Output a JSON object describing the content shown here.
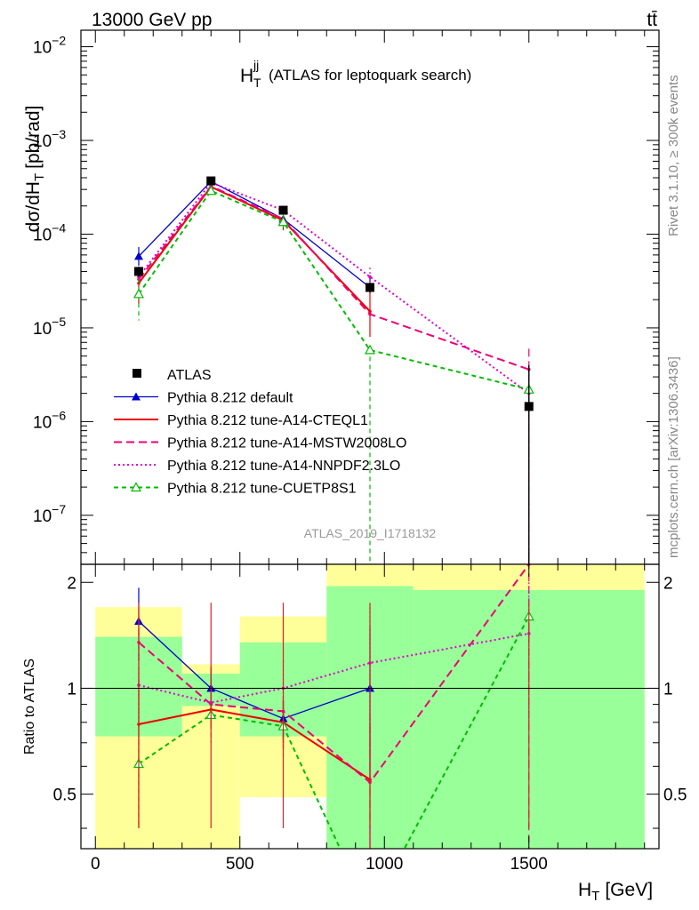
{
  "header": {
    "beam": "13000 GeV pp",
    "process": "tt̄"
  },
  "plot_title": {
    "main": "H",
    "sup": "jj",
    "sub": "T",
    "rest": "(ATLAS for leptoquark search)"
  },
  "ylabel": {
    "prefix": "dσ/dH",
    "sub": "T",
    "suffix": "[pb/rad]"
  },
  "xlabel": {
    "main": "H",
    "sub": "T",
    "unit": "[GeV]"
  },
  "ratio_label": "Ratio to ATLAS",
  "analysis_id": "ATLAS_2019_I1718132",
  "side_labels": {
    "rivet": "Rivet 3.1.10, ≥ 300k events",
    "mcplots": "mcplots.cern.ch [arXiv:1306.3436]"
  },
  "colors": {
    "data": "#000000",
    "default": "#0000cc",
    "a14_cteq": "#ee0000",
    "a14_mstw": "#ee0077",
    "a14_nnpdf": "#dd00cc",
    "cuetp8s1": "#00bb00",
    "band_inner": "#99ff99",
    "band_outer": "#ffff99"
  },
  "chart_data": {
    "type": "line",
    "x_bins": [
      [
        0,
        300
      ],
      [
        300,
        500
      ],
      [
        500,
        800
      ],
      [
        800,
        1100
      ],
      [
        1100,
        1900
      ]
    ],
    "x": [
      150,
      400,
      650,
      950,
      1500
    ],
    "xlim": [
      -50,
      1950
    ],
    "xticks": [
      0,
      500,
      1000,
      1500
    ],
    "main_ylim": [
      3e-08,
      0.015
    ],
    "main_yticks": [
      {
        "value": 1e-07,
        "mant": "10",
        "exp": "−7"
      },
      {
        "value": 1e-06,
        "mant": "10",
        "exp": "−6"
      },
      {
        "value": 1e-05,
        "mant": "10",
        "exp": "−5"
      },
      {
        "value": 0.0001,
        "mant": "10",
        "exp": "−4"
      },
      {
        "value": 0.001,
        "mant": "10",
        "exp": "−3"
      },
      {
        "value": 0.01,
        "mant": "10",
        "exp": "−2"
      }
    ],
    "ratio_ylim": [
      0.35,
      2.25
    ],
    "ratio_yticks": [
      {
        "value": 0.5,
        "label": "0.5"
      },
      {
        "value": 1,
        "label": "1"
      },
      {
        "value": 2,
        "label": "2"
      }
    ],
    "data": {
      "name": "ATLAS",
      "values": [
        4e-05,
        0.00037,
        0.00018,
        2.7e-05,
        1.45e-06
      ]
    },
    "bands": {
      "inner": [
        [
          0.73,
          1.4
        ],
        [
          0.89,
          1.1
        ],
        [
          0.73,
          1.35
        ],
        [
          0.3,
          1.95
        ],
        [
          0.3,
          1.9
        ]
      ],
      "outer": [
        [
          0.3,
          1.7
        ],
        [
          0.35,
          1.17
        ],
        [
          0.49,
          1.6
        ],
        [
          0.3,
          2.3
        ],
        [
          0.3,
          2.3
        ]
      ]
    },
    "series": [
      {
        "name": "Pythia 8.212 default",
        "key": "default",
        "dash": "",
        "marker": "triangle-filled",
        "values": [
          5.8e-05,
          0.000365,
          0.000145,
          2.7e-05,
          null
        ],
        "ratio": [
          1.55,
          1.0,
          0.82,
          1.0,
          null
        ],
        "ratio_err": [
          [
            1.2,
            1.93
          ],
          [
            0.88,
            1.15
          ],
          [
            0.7,
            0.92
          ],
          [
            0.55,
            1.5
          ],
          null
        ],
        "main_err": [
          [
            4.6e-05,
            7.3e-05
          ],
          null,
          null,
          [
            2.3e-05,
            3.5e-05
          ],
          null
        ]
      },
      {
        "name": "Pythia 8.212 tune-A14-CTEQL1",
        "key": "a14_cteq",
        "dash": "",
        "marker": "none",
        "values": [
          3e-05,
          0.00032,
          0.00014,
          1.5e-05,
          null
        ],
        "ratio": [
          0.79,
          0.87,
          0.8,
          0.55,
          null
        ],
        "ratio_err": [
          [
            0.4,
            1.1
          ],
          [
            0.77,
            0.95
          ],
          [
            0.67,
            0.92
          ],
          [
            0.3,
            0.8
          ],
          null
        ],
        "main_err": [
          [
            1.8e-05,
            4e-05
          ],
          null,
          [
            0.00011,
            0.00016
          ],
          [
            8e-06,
            2.6e-05
          ],
          null
        ]
      },
      {
        "name": "Pythia 8.212 tune-A14-MSTW2008LO",
        "key": "a14_mstw",
        "dash": "9,5",
        "marker": "none",
        "values": [
          3.3e-05,
          0.000325,
          0.000145,
          1.4e-05,
          3.6e-06
        ],
        "ratio": [
          1.35,
          0.9,
          0.86,
          0.54,
          2.25
        ],
        "ratio_err": [
          [
            0.9,
            1.6
          ],
          [
            0.8,
            0.98
          ],
          [
            0.72,
            0.95
          ],
          [
            0.3,
            0.85
          ],
          [
            0.3,
            2.3
          ]
        ],
        "main_err": [
          null,
          null,
          null,
          null,
          [
            1e-08,
            6e-06
          ]
        ]
      },
      {
        "name": "Pythia 8.212 tune-A14-NNPDF2.3LO",
        "key": "a14_nnpdf",
        "dash": "2,3",
        "marker": "none",
        "values": [
          3.5e-05,
          0.000355,
          0.00018,
          3.5e-05,
          2e-06
        ],
        "ratio": [
          1.02,
          0.91,
          1.0,
          1.18,
          1.43
        ],
        "ratio_err": [
          [
            0.75,
            1.25
          ],
          [
            0.82,
            1.03
          ],
          [
            0.78,
            1.2
          ],
          [
            0.6,
            1.7
          ],
          [
            0.8,
            2.0
          ]
        ],
        "main_err": [
          null,
          null,
          null,
          [
            2.5e-05,
            4.4e-05
          ],
          [
            3e-08,
            3.5e-06
          ]
        ]
      },
      {
        "name": "Pythia 8.212 tune-CUETP8S1",
        "key": "cuetp8s1",
        "dash": "5,4",
        "marker": "triangle-open",
        "values": [
          2.3e-05,
          0.00029,
          0.000135,
          5.8e-06,
          2.2e-06
        ],
        "ratio": [
          0.61,
          0.84,
          0.78,
          0.23,
          1.6
        ],
        "ratio_err": [
          [
            0.4,
            0.92
          ],
          [
            0.7,
            0.92
          ],
          [
            0.62,
            0.9
          ],
          null,
          null
        ],
        "main_err": [
          [
            1.2e-05,
            3.3e-05
          ],
          null,
          [
            0.00011,
            0.00016
          ],
          [
            1e-08,
            6e-06
          ],
          null
        ]
      }
    ],
    "data_err": [
      [
        3.5e-05,
        4.5e-05
      ],
      [
        0.00034,
        0.00039
      ],
      [
        0.000165,
        0.000195
      ],
      [
        2.4e-05,
        3e-05
      ],
      [
        1e-08,
        4e-06
      ]
    ]
  }
}
